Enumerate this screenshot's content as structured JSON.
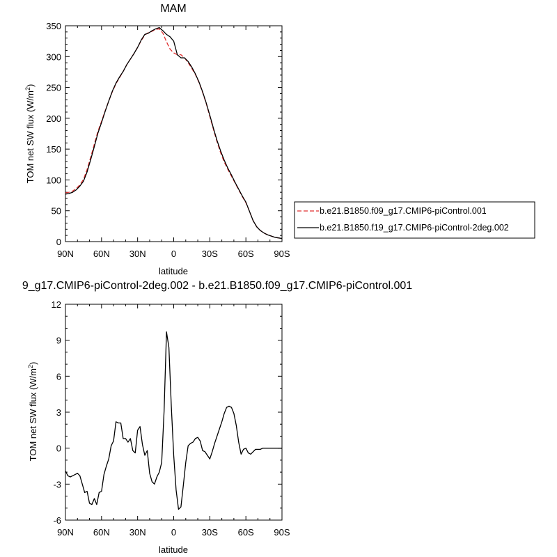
{
  "chart_data": [
    {
      "type": "line",
      "title": "MAM",
      "xlabel": "latitude",
      "ylabel": "TOM net SW flux (W/m",
      "ylabel_sup": "2",
      "ylabel_close": ")",
      "xlim": [
        90,
        -90
      ],
      "ylim": [
        0,
        350
      ],
      "x_ticks": [
        90,
        60,
        30,
        0,
        -30,
        -60,
        -90
      ],
      "x_tick_labels": [
        "90N",
        "60N",
        "30N",
        "0",
        "30S",
        "60S",
        "90S"
      ],
      "y_ticks": [
        0,
        50,
        100,
        150,
        200,
        250,
        300,
        350
      ],
      "y_tick_labels": [
        "0",
        "50",
        "100",
        "150",
        "200",
        "250",
        "300",
        "350"
      ],
      "grid": false,
      "legend_position": "right",
      "series": [
        {
          "name": "b.e21.B1850.f09_g17.CMIP6-piControl.001",
          "color": "#e03030",
          "dash": true,
          "x": [
            90,
            87,
            84,
            81,
            78,
            75,
            72,
            69,
            66,
            63,
            60,
            57,
            54,
            51,
            48,
            45,
            42,
            39,
            36,
            33,
            30,
            27,
            24,
            21,
            18,
            15,
            12,
            9,
            6,
            3,
            0,
            -3,
            -6,
            -9,
            -12,
            -15,
            -18,
            -21,
            -24,
            -27,
            -30,
            -33,
            -36,
            -39,
            -42,
            -45,
            -48,
            -51,
            -54,
            -57,
            -60,
            -63,
            -66,
            -69,
            -72,
            -75,
            -78,
            -81,
            -84,
            -87,
            -90
          ],
          "y": [
            79,
            80,
            82,
            86,
            92,
            101,
            117,
            137,
            158,
            179,
            195,
            212,
            228,
            243,
            256,
            266,
            276,
            287,
            296,
            305,
            315,
            326,
            335,
            339,
            341,
            344,
            345,
            338,
            324,
            312,
            306,
            303,
            303,
            298,
            290,
            281,
            271,
            258,
            242,
            224,
            203,
            182,
            162,
            144,
            129,
            117,
            106,
            95,
            84,
            73,
            63,
            49,
            34,
            24,
            18,
            14,
            11,
            9,
            7,
            6,
            5
          ]
        },
        {
          "name": "b.e21.B1850.f19_g17.CMIP6-piControl-2deg.002",
          "color": "#000000",
          "dash": false,
          "x": [
            90,
            87,
            84,
            81,
            78,
            75,
            72,
            69,
            66,
            63,
            60,
            57,
            54,
            51,
            48,
            45,
            42,
            39,
            36,
            33,
            30,
            27,
            24,
            21,
            18,
            15,
            12,
            9,
            6,
            3,
            0,
            -3,
            -6,
            -9,
            -12,
            -15,
            -18,
            -21,
            -24,
            -27,
            -30,
            -33,
            -36,
            -39,
            -42,
            -45,
            -48,
            -51,
            -54,
            -57,
            -60,
            -63,
            -66,
            -69,
            -72,
            -75,
            -78,
            -81,
            -84,
            -87,
            -90
          ],
          "y": [
            77,
            78,
            80,
            84,
            90,
            98,
            113,
            133,
            154,
            176,
            193,
            211,
            228,
            244,
            257,
            267,
            276,
            287,
            296,
            305,
            315,
            327,
            336,
            338,
            342,
            345,
            347,
            342,
            336,
            332,
            325,
            303,
            298,
            298,
            292,
            283,
            272,
            259,
            243,
            225,
            205,
            184,
            164,
            147,
            132,
            119,
            108,
            96,
            85,
            74,
            64,
            49,
            34,
            24,
            18,
            14,
            11,
            9,
            7,
            6,
            5
          ]
        }
      ]
    },
    {
      "type": "line",
      "title": "9_g17.CMIP6-piControl-2deg.002 - b.e21.B1850.f09_g17.CMIP6-piControl.001",
      "xlabel": "latitude",
      "ylabel": "TOM net SW flux (W/m",
      "ylabel_sup": "2",
      "ylabel_close": ")",
      "xlim": [
        90,
        -90
      ],
      "ylim": [
        -6,
        12
      ],
      "x_ticks": [
        90,
        60,
        30,
        0,
        -30,
        -60,
        -90
      ],
      "x_tick_labels": [
        "90N",
        "60N",
        "30N",
        "0",
        "30S",
        "60S",
        "90S"
      ],
      "y_ticks": [
        -6,
        -3,
        0,
        3,
        6,
        9,
        12
      ],
      "y_tick_labels": [
        "-6",
        "-3",
        "0",
        "3",
        "6",
        "9",
        "12"
      ],
      "grid": false,
      "series": [
        {
          "color": "#000000",
          "dash": false,
          "x": [
            90,
            88,
            86,
            84,
            82,
            80,
            78,
            76,
            74,
            72,
            70,
            68,
            66,
            64,
            62,
            60,
            58,
            56,
            54,
            52,
            50,
            48,
            46,
            44,
            42,
            40,
            38,
            36,
            34,
            32,
            30,
            28,
            26,
            24,
            22,
            20,
            18,
            16,
            14,
            12,
            10,
            8,
            6,
            4,
            2,
            0,
            -2,
            -4,
            -6,
            -8,
            -10,
            -12,
            -14,
            -16,
            -18,
            -20,
            -22,
            -24,
            -26,
            -28,
            -30,
            -32,
            -34,
            -36,
            -38,
            -40,
            -42,
            -44,
            -46,
            -48,
            -50,
            -52,
            -54,
            -56,
            -58,
            -60,
            -62,
            -64,
            -66,
            -68,
            -70,
            -72,
            -74,
            -76,
            -78,
            -80,
            -82,
            -84,
            -86,
            -88,
            -90
          ],
          "y": [
            -1.9,
            -2.3,
            -2.4,
            -2.3,
            -2.2,
            -2.1,
            -2.3,
            -3,
            -3.7,
            -3.6,
            -4.6,
            -4.7,
            -4.2,
            -4.7,
            -3.7,
            -3.6,
            -2.2,
            -1.5,
            -0.9,
            0.2,
            0.6,
            2.2,
            2.1,
            2.1,
            0.8,
            0.8,
            0.5,
            0.8,
            -0.2,
            -0.4,
            1.5,
            1.8,
            0.3,
            -0.6,
            -0.2,
            -2.1,
            -2.8,
            -3,
            -2.4,
            -2,
            -1.2,
            3.1,
            9.7,
            8.4,
            3.5,
            -0.6,
            -3.5,
            -5.1,
            -4.9,
            -3.1,
            -1.2,
            0.2,
            0.4,
            0.5,
            0.8,
            0.9,
            0.6,
            -0.2,
            -0.3,
            -0.6,
            -0.9,
            -0.3,
            0.4,
            1,
            1.6,
            2.2,
            2.9,
            3.4,
            3.5,
            3.4,
            2.9,
            1.9,
            0.5,
            -0.5,
            -0.1,
            0,
            -0.4,
            -0.5,
            -0.3,
            -0.1,
            -0.1,
            -0.1,
            0,
            0,
            0,
            0,
            0,
            0,
            0,
            0,
            0
          ]
        }
      ]
    }
  ]
}
